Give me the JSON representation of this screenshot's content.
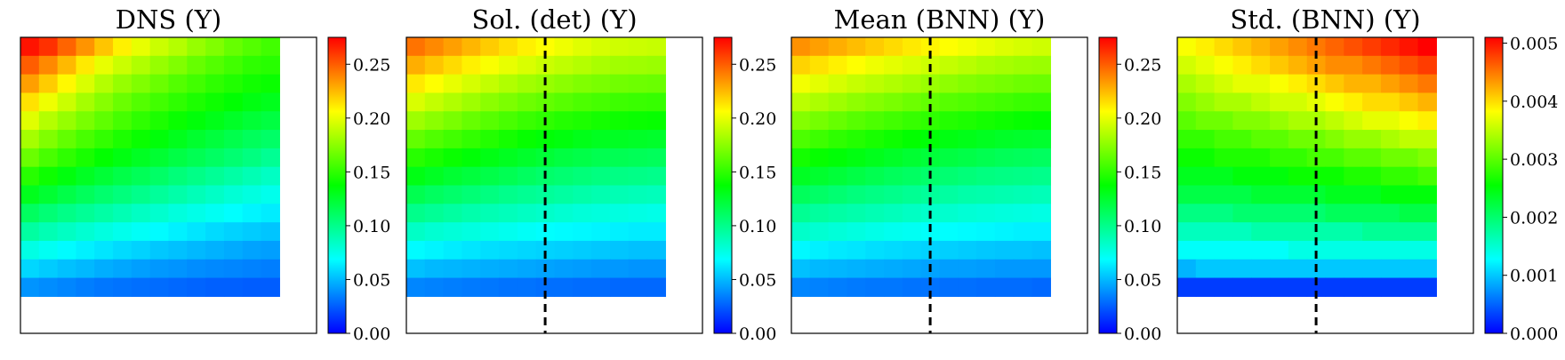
{
  "figure": {
    "panels": [
      {
        "title": "DNS (Y)",
        "dashed_line": false
      },
      {
        "title": "Sol. (det) (Y)",
        "dashed_line": true
      },
      {
        "title": "Mean (BNN) (Y)",
        "dashed_line": true
      },
      {
        "title": "Std. (BNN) (Y)",
        "dashed_line": true
      }
    ]
  },
  "colorscale": [
    "#0000ff",
    "#00ffff",
    "#00ff00",
    "#ffff00",
    "#ff0000"
  ],
  "chart_data": [
    {
      "type": "heatmap",
      "title": "DNS (Y)",
      "colormap": "jet",
      "vmin": 0.0,
      "vmax": 0.275,
      "colorbar_ticks": [
        "0.00",
        "0.05",
        "0.10",
        "0.15",
        "0.20",
        "0.25"
      ],
      "axes_ticks": "hidden",
      "grid_shape": [
        14,
        14
      ],
      "masked_region": "last column and last two rows blank (white)",
      "values": [
        [
          0.27,
          0.262,
          0.248,
          0.235,
          0.222,
          0.21,
          0.2,
          0.192,
          0.186,
          0.178,
          0.172,
          0.165,
          0.16,
          0.155
        ],
        [
          0.25,
          0.238,
          0.225,
          0.212,
          0.2,
          0.192,
          0.185,
          0.178,
          0.172,
          0.165,
          0.16,
          0.155,
          0.15,
          0.148
        ],
        [
          0.232,
          0.22,
          0.208,
          0.196,
          0.186,
          0.178,
          0.172,
          0.166,
          0.16,
          0.155,
          0.15,
          0.146,
          0.142,
          0.14
        ],
        [
          0.214,
          0.202,
          0.192,
          0.182,
          0.174,
          0.166,
          0.16,
          0.155,
          0.15,
          0.145,
          0.141,
          0.137,
          0.133,
          0.13
        ],
        [
          0.198,
          0.186,
          0.178,
          0.17,
          0.163,
          0.156,
          0.15,
          0.145,
          0.14,
          0.135,
          0.131,
          0.127,
          0.123,
          0.12
        ],
        [
          0.182,
          0.172,
          0.164,
          0.157,
          0.151,
          0.145,
          0.14,
          0.135,
          0.13,
          0.125,
          0.121,
          0.117,
          0.113,
          0.11
        ],
        [
          0.166,
          0.157,
          0.15,
          0.144,
          0.138,
          0.133,
          0.128,
          0.124,
          0.119,
          0.115,
          0.111,
          0.107,
          0.103,
          0.098
        ],
        [
          0.148,
          0.141,
          0.134,
          0.128,
          0.123,
          0.118,
          0.114,
          0.11,
          0.105,
          0.101,
          0.097,
          0.093,
          0.089,
          0.085
        ],
        [
          0.13,
          0.124,
          0.118,
          0.113,
          0.108,
          0.104,
          0.1,
          0.096,
          0.092,
          0.088,
          0.084,
          0.08,
          0.077,
          0.074
        ],
        [
          0.112,
          0.106,
          0.101,
          0.097,
          0.093,
          0.089,
          0.085,
          0.082,
          0.078,
          0.075,
          0.072,
          0.069,
          0.066,
          0.064
        ],
        [
          0.094,
          0.089,
          0.085,
          0.081,
          0.077,
          0.074,
          0.071,
          0.068,
          0.065,
          0.062,
          0.059,
          0.057,
          0.055,
          0.053
        ],
        [
          0.076,
          0.072,
          0.068,
          0.065,
          0.062,
          0.059,
          0.057,
          0.054,
          0.052,
          0.05,
          0.048,
          0.046,
          0.044,
          0.043
        ],
        [
          0.058,
          0.055,
          0.052,
          0.05,
          0.047,
          0.045,
          0.043,
          0.041,
          0.04,
          0.038,
          0.037,
          0.036,
          0.035,
          0.034
        ],
        [
          0.04,
          0.038,
          0.036,
          0.034,
          0.032,
          0.031,
          0.03,
          0.029,
          0.028,
          0.027,
          0.026,
          0.026,
          0.025,
          0.025
        ]
      ]
    },
    {
      "type": "heatmap",
      "title": "Sol. (det) (Y)",
      "colormap": "jet",
      "vmin": 0.0,
      "vmax": 0.275,
      "colorbar_ticks": [
        "0.00",
        "0.05",
        "0.10",
        "0.15",
        "0.20",
        "0.25"
      ],
      "axes_ticks": "hidden",
      "grid_shape": [
        14,
        14
      ],
      "masked_region": "last column and last two rows blank (white)",
      "annotation": "vertical dashed line at column boundary 7.5 of 16",
      "values": [
        [
          0.244,
          0.238,
          0.232,
          0.226,
          0.22,
          0.215,
          0.21,
          0.206,
          0.202,
          0.198,
          0.195,
          0.193,
          0.192,
          0.191
        ],
        [
          0.228,
          0.222,
          0.216,
          0.21,
          0.205,
          0.2,
          0.196,
          0.192,
          0.189,
          0.186,
          0.183,
          0.181,
          0.18,
          0.179
        ],
        [
          0.212,
          0.206,
          0.2,
          0.195,
          0.19,
          0.185,
          0.181,
          0.178,
          0.175,
          0.172,
          0.17,
          0.168,
          0.167,
          0.166
        ],
        [
          0.196,
          0.19,
          0.185,
          0.18,
          0.175,
          0.171,
          0.167,
          0.164,
          0.161,
          0.158,
          0.156,
          0.154,
          0.153,
          0.152
        ],
        [
          0.18,
          0.175,
          0.17,
          0.165,
          0.161,
          0.157,
          0.153,
          0.15,
          0.147,
          0.145,
          0.143,
          0.141,
          0.14,
          0.139
        ],
        [
          0.164,
          0.159,
          0.155,
          0.151,
          0.147,
          0.143,
          0.139,
          0.136,
          0.134,
          0.131,
          0.129,
          0.128,
          0.127,
          0.126
        ],
        [
          0.148,
          0.144,
          0.14,
          0.136,
          0.132,
          0.129,
          0.126,
          0.123,
          0.12,
          0.118,
          0.116,
          0.115,
          0.114,
          0.113
        ],
        [
          0.132,
          0.128,
          0.124,
          0.121,
          0.118,
          0.115,
          0.112,
          0.109,
          0.107,
          0.105,
          0.103,
          0.102,
          0.101,
          0.1
        ],
        [
          0.116,
          0.112,
          0.109,
          0.106,
          0.103,
          0.1,
          0.098,
          0.096,
          0.094,
          0.092,
          0.09,
          0.089,
          0.088,
          0.087
        ],
        [
          0.1,
          0.097,
          0.094,
          0.091,
          0.089,
          0.087,
          0.085,
          0.083,
          0.081,
          0.079,
          0.078,
          0.077,
          0.076,
          0.075
        ],
        [
          0.084,
          0.081,
          0.079,
          0.077,
          0.075,
          0.073,
          0.071,
          0.069,
          0.068,
          0.067,
          0.066,
          0.065,
          0.064,
          0.064
        ],
        [
          0.068,
          0.066,
          0.064,
          0.062,
          0.06,
          0.059,
          0.058,
          0.057,
          0.056,
          0.055,
          0.054,
          0.053,
          0.052,
          0.052
        ],
        [
          0.052,
          0.05,
          0.049,
          0.048,
          0.047,
          0.046,
          0.045,
          0.044,
          0.043,
          0.042,
          0.041,
          0.041,
          0.04,
          0.04
        ],
        [
          0.036,
          0.035,
          0.034,
          0.033,
          0.032,
          0.031,
          0.031,
          0.03,
          0.03,
          0.029,
          0.029,
          0.028,
          0.028,
          0.028
        ]
      ]
    },
    {
      "type": "heatmap",
      "title": "Mean (BNN) (Y)",
      "colormap": "jet",
      "vmin": 0.0,
      "vmax": 0.275,
      "colorbar_ticks": [
        "0.00",
        "0.05",
        "0.10",
        "0.15",
        "0.20",
        "0.25"
      ],
      "axes_ticks": "hidden",
      "grid_shape": [
        14,
        14
      ],
      "masked_region": "last column and last two rows blank (white)",
      "annotation": "vertical dashed line at column boundary 7.5 of 16",
      "values": [
        [
          0.236,
          0.232,
          0.228,
          0.224,
          0.22,
          0.216,
          0.212,
          0.209,
          0.206,
          0.203,
          0.2,
          0.197,
          0.195,
          0.193
        ],
        [
          0.218,
          0.214,
          0.21,
          0.206,
          0.202,
          0.199,
          0.196,
          0.193,
          0.19,
          0.187,
          0.184,
          0.182,
          0.18,
          0.179
        ],
        [
          0.203,
          0.199,
          0.195,
          0.191,
          0.188,
          0.185,
          0.182,
          0.179,
          0.176,
          0.173,
          0.171,
          0.169,
          0.167,
          0.166
        ],
        [
          0.188,
          0.184,
          0.18,
          0.176,
          0.173,
          0.17,
          0.167,
          0.164,
          0.161,
          0.159,
          0.157,
          0.155,
          0.153,
          0.152
        ],
        [
          0.173,
          0.169,
          0.165,
          0.161,
          0.158,
          0.155,
          0.152,
          0.15,
          0.147,
          0.145,
          0.143,
          0.141,
          0.139,
          0.138
        ],
        [
          0.158,
          0.154,
          0.15,
          0.147,
          0.144,
          0.141,
          0.138,
          0.136,
          0.133,
          0.131,
          0.129,
          0.127,
          0.126,
          0.125
        ],
        [
          0.143,
          0.139,
          0.136,
          0.133,
          0.13,
          0.127,
          0.124,
          0.122,
          0.12,
          0.118,
          0.116,
          0.114,
          0.113,
          0.112
        ],
        [
          0.128,
          0.125,
          0.122,
          0.119,
          0.116,
          0.113,
          0.111,
          0.109,
          0.107,
          0.105,
          0.103,
          0.102,
          0.101,
          0.1
        ],
        [
          0.113,
          0.11,
          0.107,
          0.104,
          0.102,
          0.1,
          0.098,
          0.096,
          0.094,
          0.092,
          0.091,
          0.09,
          0.089,
          0.088
        ],
        [
          0.098,
          0.095,
          0.093,
          0.091,
          0.089,
          0.087,
          0.085,
          0.083,
          0.082,
          0.08,
          0.079,
          0.078,
          0.077,
          0.076
        ],
        [
          0.083,
          0.081,
          0.079,
          0.077,
          0.075,
          0.073,
          0.072,
          0.07,
          0.069,
          0.068,
          0.067,
          0.066,
          0.065,
          0.065
        ],
        [
          0.067,
          0.065,
          0.063,
          0.062,
          0.06,
          0.059,
          0.058,
          0.057,
          0.056,
          0.055,
          0.054,
          0.053,
          0.053,
          0.052
        ],
        [
          0.052,
          0.05,
          0.049,
          0.048,
          0.047,
          0.046,
          0.045,
          0.044,
          0.043,
          0.043,
          0.042,
          0.041,
          0.041,
          0.041
        ],
        [
          0.036,
          0.035,
          0.034,
          0.033,
          0.032,
          0.032,
          0.031,
          0.031,
          0.03,
          0.03,
          0.029,
          0.029,
          0.029,
          0.028
        ]
      ]
    },
    {
      "type": "heatmap",
      "title": "Std. (BNN) (Y)",
      "colormap": "jet",
      "vmin": 0.0,
      "vmax": 0.0051,
      "colorbar_ticks": [
        "0.000",
        "0.001",
        "0.002",
        "0.003",
        "0.004",
        "0.005"
      ],
      "axes_ticks": "hidden",
      "grid_shape": [
        14,
        14
      ],
      "masked_region": "last column and last two rows blank (white)",
      "annotation": "vertical dashed line at column boundary 7.5 of 16",
      "values": [
        [
          0.0038,
          0.0039,
          0.004,
          0.0041,
          0.0042,
          0.0043,
          0.0044,
          0.0045,
          0.0046,
          0.0047,
          0.0048,
          0.0049,
          0.005,
          0.0051
        ],
        [
          0.0036,
          0.0037,
          0.0038,
          0.0039,
          0.004,
          0.0041,
          0.0042,
          0.0043,
          0.0044,
          0.0044,
          0.0045,
          0.0046,
          0.0047,
          0.0048
        ],
        [
          0.0034,
          0.0035,
          0.0036,
          0.0037,
          0.0037,
          0.0038,
          0.0039,
          0.004,
          0.0041,
          0.0042,
          0.0042,
          0.0043,
          0.0044,
          0.0045
        ],
        [
          0.0032,
          0.0033,
          0.0034,
          0.0034,
          0.0035,
          0.0036,
          0.0036,
          0.0037,
          0.0038,
          0.0039,
          0.004,
          0.004,
          0.0041,
          0.0042
        ],
        [
          0.003,
          0.0031,
          0.0031,
          0.0032,
          0.0032,
          0.0033,
          0.0034,
          0.0034,
          0.0035,
          0.0036,
          0.0037,
          0.0037,
          0.0038,
          0.0039
        ],
        [
          0.0028,
          0.0028,
          0.0029,
          0.0029,
          0.003,
          0.003,
          0.0031,
          0.0031,
          0.0032,
          0.0033,
          0.0033,
          0.0034,
          0.0035,
          0.0035
        ],
        [
          0.0026,
          0.0026,
          0.0027,
          0.0027,
          0.0027,
          0.0028,
          0.0028,
          0.0029,
          0.0029,
          0.003,
          0.003,
          0.0031,
          0.0031,
          0.0032
        ],
        [
          0.0024,
          0.0024,
          0.0024,
          0.0025,
          0.0025,
          0.0025,
          0.0026,
          0.0026,
          0.0026,
          0.0027,
          0.0027,
          0.0028,
          0.0028,
          0.0029
        ],
        [
          0.0022,
          0.0022,
          0.0022,
          0.0022,
          0.0023,
          0.0023,
          0.0023,
          0.0023,
          0.0024,
          0.0024,
          0.0024,
          0.0025,
          0.0025,
          0.0025
        ],
        [
          0.0019,
          0.0019,
          0.0019,
          0.002,
          0.002,
          0.002,
          0.002,
          0.002,
          0.0021,
          0.0021,
          0.0021,
          0.0021,
          0.0022,
          0.0022
        ],
        [
          0.0016,
          0.0016,
          0.0016,
          0.0016,
          0.0017,
          0.0017,
          0.0017,
          0.0017,
          0.0017,
          0.0017,
          0.0018,
          0.0018,
          0.0018,
          0.0018
        ],
        [
          0.0013,
          0.0013,
          0.0013,
          0.0013,
          0.0013,
          0.0013,
          0.0014,
          0.0014,
          0.0014,
          0.0014,
          0.0014,
          0.0014,
          0.0014,
          0.0014
        ],
        [
          0.0009,
          0.001,
          0.001,
          0.001,
          0.001,
          0.001,
          0.001,
          0.001,
          0.001,
          0.001,
          0.001,
          0.001,
          0.001,
          0.001
        ],
        [
          0.0003,
          0.0003,
          0.0003,
          0.0003,
          0.0003,
          0.0003,
          0.0003,
          0.0003,
          0.0003,
          0.0003,
          0.0003,
          0.0003,
          0.0003,
          0.0003
        ]
      ]
    }
  ]
}
